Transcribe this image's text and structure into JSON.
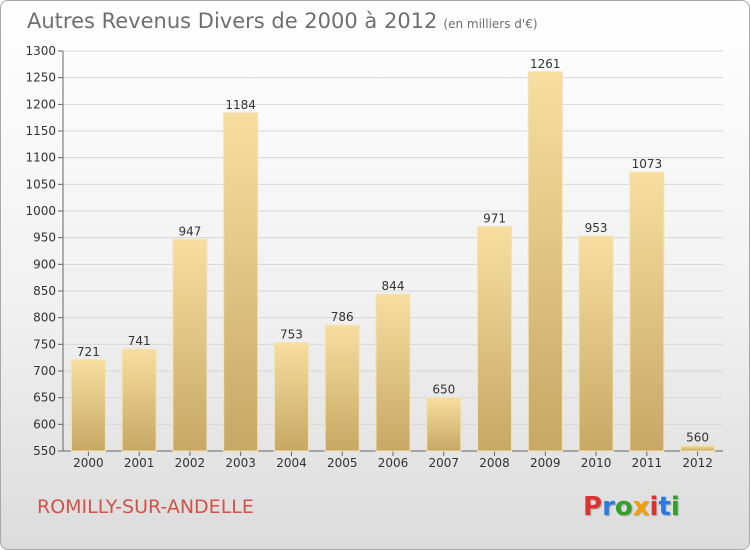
{
  "header": {
    "title": "Autres Revenus Divers de 2000 à 2012",
    "subtitle": "(en milliers d'€)"
  },
  "footer": {
    "commune": "ROMILLY-SUR-ANDELLE",
    "logo": [
      "P",
      "r",
      "o",
      "x",
      "i",
      "t",
      "i"
    ]
  },
  "colors": {
    "bar_light": "#f7dea0",
    "bar_dark": "#c7a864",
    "commune_text": "#d2524a"
  },
  "chart_data": {
    "type": "bar",
    "title": "Autres Revenus Divers de 2000 à 2012",
    "subtitle": "(en milliers d'€)",
    "categories": [
      "2000",
      "2001",
      "2002",
      "2003",
      "2004",
      "2005",
      "2006",
      "2007",
      "2008",
      "2009",
      "2010",
      "2011",
      "2012"
    ],
    "values": [
      721,
      741,
      947,
      1184,
      753,
      786,
      844,
      650,
      971,
      1261,
      953,
      1073,
      560
    ],
    "ylim": [
      550,
      1300
    ],
    "yticks": [
      550,
      600,
      650,
      700,
      750,
      800,
      850,
      900,
      950,
      1000,
      1050,
      1100,
      1150,
      1200,
      1250,
      1300
    ],
    "grid": true,
    "legend": "none"
  }
}
